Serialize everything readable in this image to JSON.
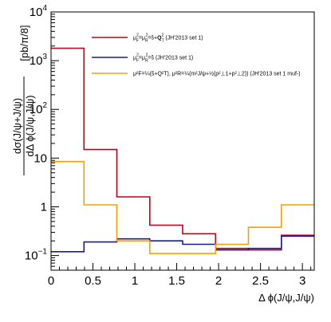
{
  "chart_data": {
    "type": "line",
    "step": true,
    "title": "",
    "xlabel": "Δ ϕ(J/ψ,J/ψ)",
    "ylabel": {
      "numerator": "dσ(J/ψ+J/ψ)",
      "denominator": "dΔ ϕ(J/ψ,J/ψ)",
      "unit": "[pb/π/8]"
    },
    "xlim": [
      0,
      3.1416
    ],
    "ylim": [
      0.05,
      10000
    ],
    "yscale": "log",
    "grid": false,
    "legend_position": "top-right",
    "x_ticks": [
      {
        "value": 0,
        "label": "0"
      },
      {
        "value": 0.5,
        "label": "0.5"
      },
      {
        "value": 1,
        "label": "1"
      },
      {
        "value": 1.5,
        "label": "1.5"
      },
      {
        "value": 2,
        "label": "2"
      },
      {
        "value": 2.5,
        "label": "2.5"
      },
      {
        "value": 3,
        "label": "3"
      }
    ],
    "y_ticks": [
      {
        "value": 0.1,
        "base": "10",
        "exp": "−1"
      },
      {
        "value": 1,
        "base": "1",
        "exp": ""
      },
      {
        "value": 10,
        "base": "10",
        "exp": ""
      },
      {
        "value": 100,
        "base": "10",
        "exp": "2"
      },
      {
        "value": 1000,
        "base": "10",
        "exp": "3"
      },
      {
        "value": 10000,
        "base": "10",
        "exp": "4"
      }
    ],
    "bin_edges": [
      0,
      0.3927,
      0.7854,
      1.1781,
      1.5708,
      1.9635,
      2.3562,
      2.7489,
      3.1416
    ],
    "series": [
      {
        "name": "μ²F=μ²R=ŝ+Q²T (JH'2013 set 1)",
        "legend": {
          "pre": "μ",
          "sub1": "F",
          "sup1": "2",
          "mid": "=μ",
          "sub2": "R",
          "sup2": "2",
          "eq": "=ŝ+",
          "q": "Q",
          "subq": "T",
          "supq": "2",
          "tail": " (JH'2013 set 1)"
        },
        "color": "#c0001a",
        "values": [
          1800,
          15,
          1.6,
          0.42,
          0.28,
          0.14,
          0.13,
          0.26
        ]
      },
      {
        "name": "μ²F=μ²R=ŝ (JH'2013 set 1)",
        "legend": {
          "pre": "μ",
          "sub1": "F",
          "sup1": "2",
          "mid": "=μ",
          "sub2": "R",
          "sup2": "2",
          "eq": "=ŝ",
          "tail": " (JH'2013 set 1)"
        },
        "color": "#1a1a9c",
        "values": [
          0.12,
          0.19,
          0.22,
          0.2,
          0.17,
          0.13,
          0.14,
          0.25
        ]
      },
      {
        "name": "μ²F=¼(ŝ+Q²T), μ²R=¼(m²J/ψ+½(p²⊥1+p²⊥2)) (JH'2013 set 1 muf-)",
        "legend_text": "μ²F=¼(ŝ+Q²T), μ²R=¼(m²J/ψ+½(p²⊥1+p²⊥2)) (JH'2013 set 1 muf-)",
        "color": "#f5a000",
        "values": [
          8.5,
          1.1,
          0.2,
          0.11,
          0.11,
          0.17,
          0.38,
          1.1
        ]
      }
    ]
  }
}
